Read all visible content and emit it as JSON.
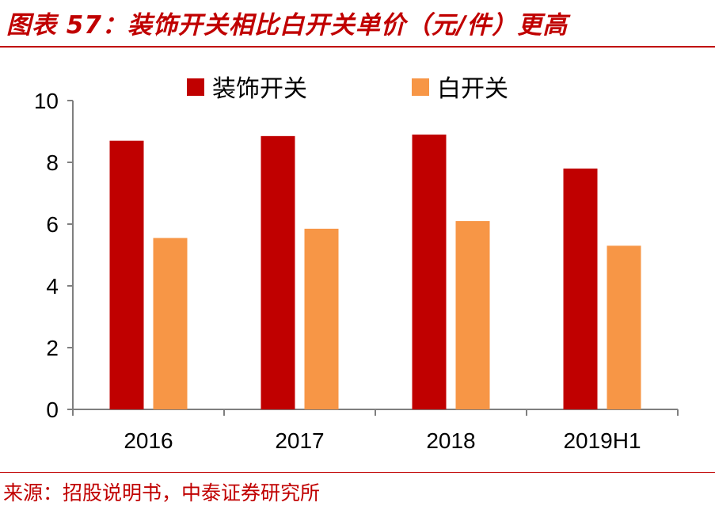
{
  "figure": {
    "title": "图表 57：装饰开关相比白开关单价（元/件）更高",
    "source": "来源：招股说明书，中泰证券研究所"
  },
  "colors": {
    "accent": "#c00000",
    "series_1": "#c00000",
    "series_2": "#f79646",
    "axis": "#7f7f7f",
    "text": "#000000"
  },
  "chart_data": {
    "type": "bar",
    "categories": [
      "2016",
      "2017",
      "2018",
      "2019H1"
    ],
    "series": [
      {
        "name": "装饰开关",
        "values": [
          8.7,
          8.85,
          8.9,
          7.8
        ]
      },
      {
        "name": "白开关",
        "values": [
          5.55,
          5.85,
          6.1,
          5.3
        ]
      }
    ],
    "title": "",
    "xlabel": "",
    "ylabel": "",
    "ylim": [
      0,
      10
    ],
    "yticks": [
      0,
      2,
      4,
      6,
      8,
      10
    ],
    "grid": false,
    "legend_position": "top-center"
  }
}
